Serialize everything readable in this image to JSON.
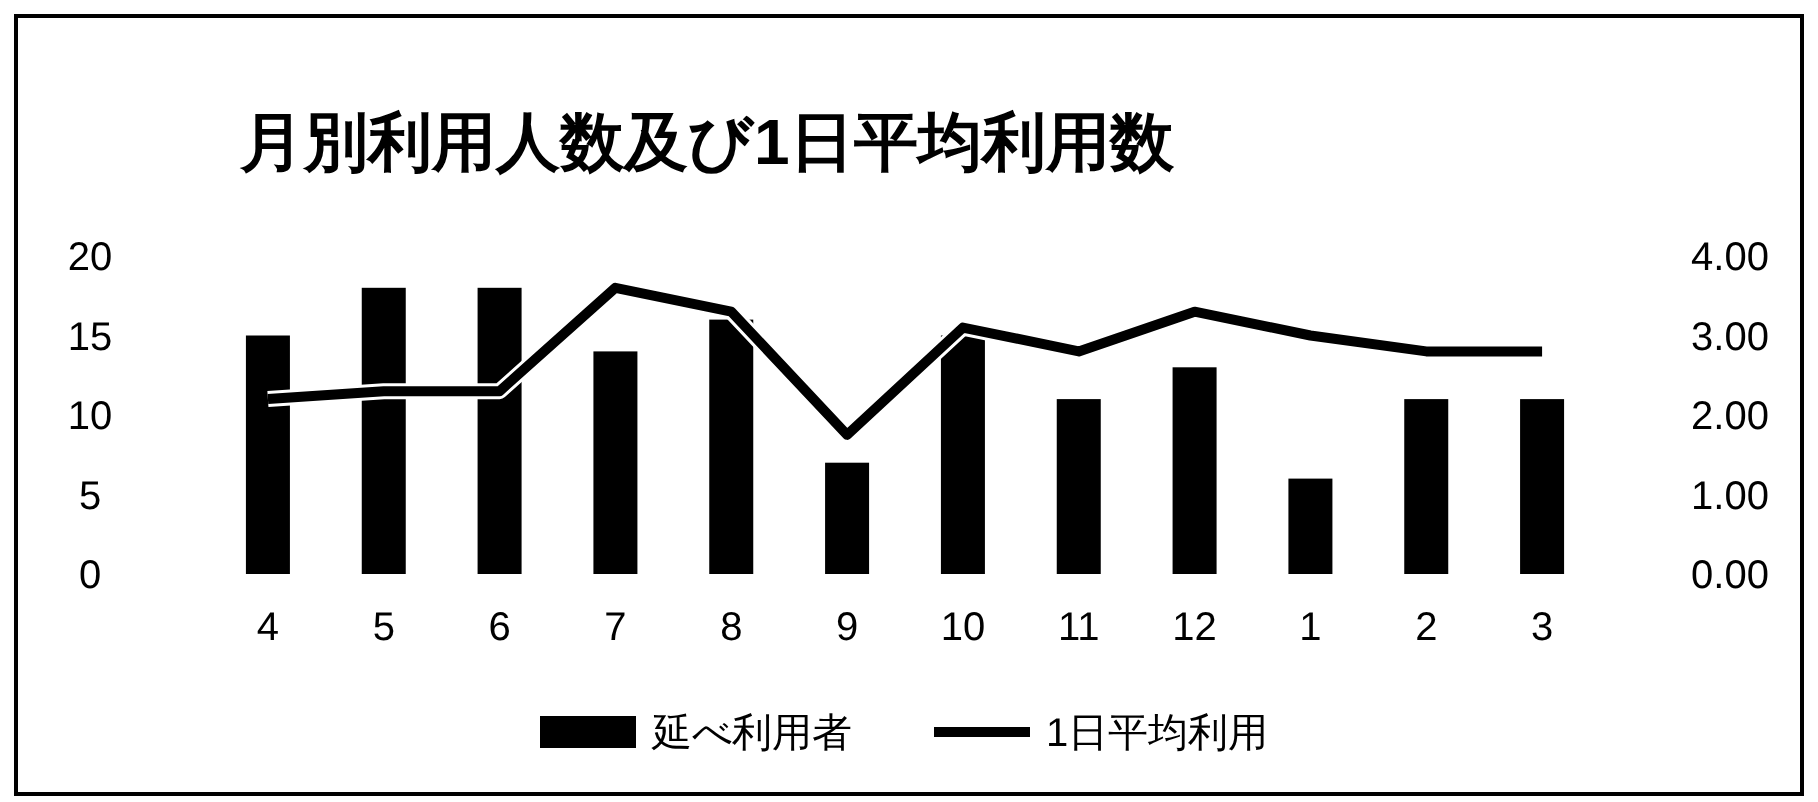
{
  "chart_data": {
    "type": "bar",
    "title": "月別利用人数及び1日平均利用数",
    "categories": [
      "4",
      "5",
      "6",
      "7",
      "8",
      "9",
      "10",
      "11",
      "12",
      "1",
      "2",
      "3"
    ],
    "series": [
      {
        "name": "延べ利用者",
        "color": "#000000",
        "values": [
          15,
          18,
          18,
          14,
          16,
          7,
          15,
          11,
          13,
          6,
          11,
          11
        ]
      },
      {
        "name": "1日平均利用",
        "type": "line",
        "axis": "y2",
        "color": "#000000",
        "values": [
          2.2,
          2.3,
          2.3,
          3.6,
          3.3,
          1.75,
          3.1,
          2.8,
          3.3,
          3.0,
          2.8,
          2.8
        ]
      }
    ],
    "ylim": [
      0,
      20
    ],
    "yticks": [
      0,
      5,
      10,
      15,
      20
    ],
    "y2lim": [
      0,
      4
    ],
    "y2ticks": [
      {
        "value": 0,
        "label": "0.00"
      },
      {
        "value": 1,
        "label": "1.00"
      },
      {
        "value": 2,
        "label": "2.00"
      },
      {
        "value": 3,
        "label": "3.00"
      },
      {
        "value": 4,
        "label": "4.00"
      }
    ],
    "legend": "bottom",
    "marker": "none",
    "line_style": "solid",
    "grid": false
  }
}
